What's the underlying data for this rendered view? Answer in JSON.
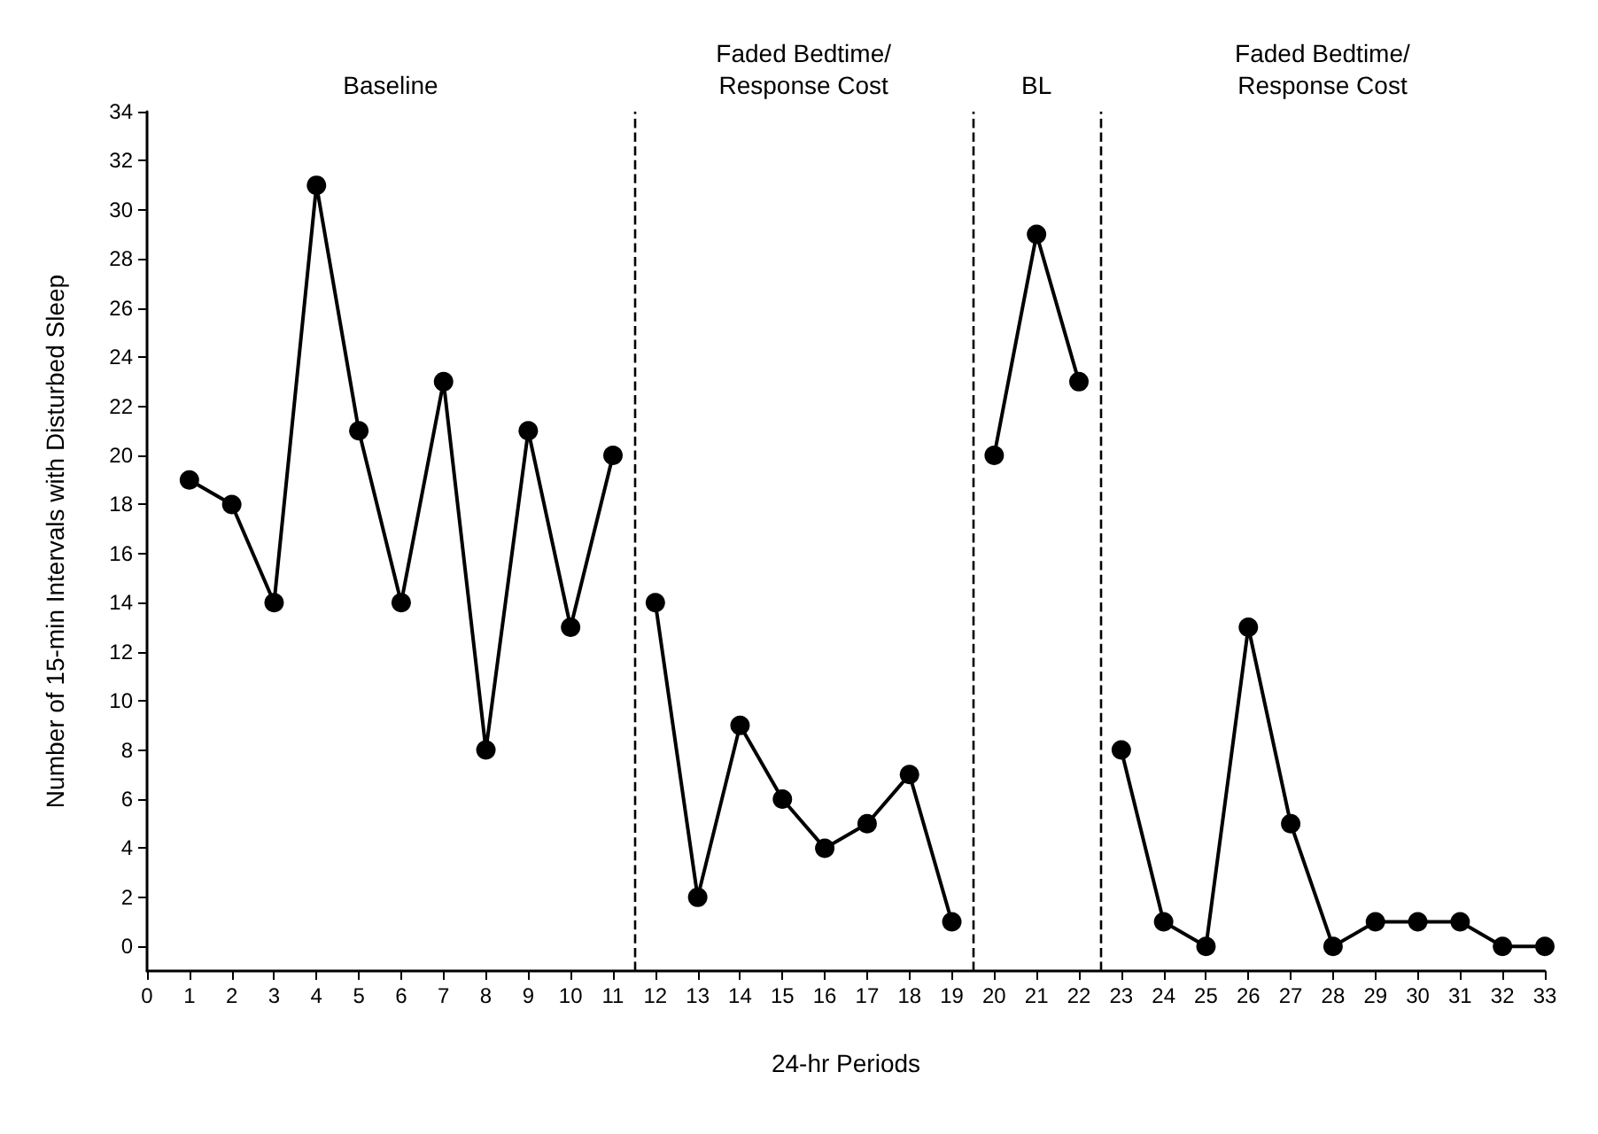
{
  "chart_data": {
    "type": "line",
    "xlabel": "24-hr Periods",
    "ylabel": "Number of 15-min Intervals with Disturbed Sleep",
    "series": [
      {
        "color": "#000000",
        "x": [
          1,
          2,
          3,
          4,
          5,
          6,
          7,
          8,
          9,
          10,
          11
        ],
        "values": [
          19,
          18,
          14,
          31,
          21,
          14,
          23,
          8,
          21,
          13,
          20
        ]
      },
      {
        "color": "#000000",
        "x": [
          12,
          13,
          14,
          15,
          16,
          17,
          18,
          19
        ],
        "values": [
          14,
          2,
          9,
          6,
          4,
          5,
          7,
          1
        ]
      },
      {
        "color": "#000000",
        "x": [
          20,
          21,
          22
        ],
        "values": [
          20,
          29,
          23
        ]
      },
      {
        "color": "#000000",
        "x": [
          23,
          24,
          25,
          26,
          27,
          28,
          29,
          30,
          31,
          32,
          33
        ],
        "values": [
          8,
          1,
          0,
          13,
          5,
          0,
          1,
          1,
          1,
          0,
          0
        ]
      }
    ],
    "xlim": [
      0,
      33
    ],
    "xticks": [
      0,
      1,
      2,
      3,
      4,
      5,
      6,
      7,
      8,
      9,
      10,
      11,
      12,
      13,
      14,
      15,
      16,
      17,
      18,
      19,
      20,
      21,
      22,
      23,
      24,
      25,
      26,
      27,
      28,
      29,
      30,
      31,
      32,
      33
    ],
    "ylim": [
      -1,
      34
    ],
    "yticks": [
      0,
      2,
      4,
      6,
      8,
      10,
      12,
      14,
      16,
      18,
      20,
      22,
      24,
      26,
      28,
      30,
      32,
      34
    ],
    "ref_lines": [
      {
        "axis": "x",
        "value": 11.5,
        "color": "#000000",
        "line_style": "dashed"
      },
      {
        "axis": "x",
        "value": 19.5,
        "color": "#000000",
        "line_style": "dashed"
      },
      {
        "axis": "x",
        "value": 22.5,
        "color": "#000000",
        "line_style": "dashed"
      }
    ],
    "annotations": [
      "Baseline",
      "Faded Bedtime/\nResponse Cost",
      "BL",
      "Faded Bedtime/\nResponse Cost"
    ],
    "grid": false,
    "marker": "circle",
    "line_style": "solid"
  }
}
